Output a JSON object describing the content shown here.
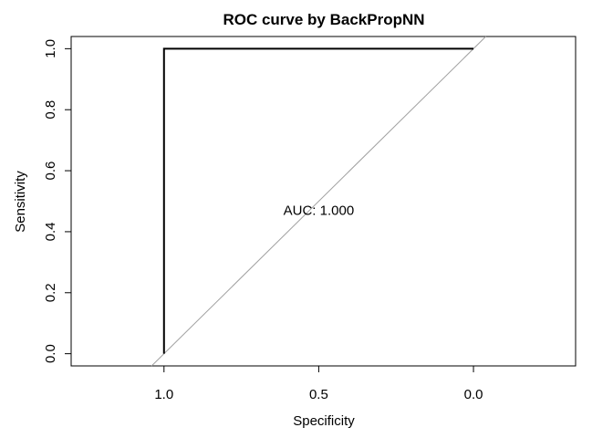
{
  "chart_data": {
    "type": "line",
    "title": "ROC curve by BackPropNN",
    "xlabel": "Specificity",
    "ylabel": "Sensitivity",
    "x_reversed": true,
    "xlim": [
      1.3,
      -0.33
    ],
    "ylim": [
      -0.04,
      1.04
    ],
    "xticks": [
      1.0,
      0.5,
      0.0
    ],
    "xtick_labels": [
      "1.0",
      "0.5",
      "0.0"
    ],
    "yticks": [
      0.0,
      0.2,
      0.4,
      0.6,
      0.8,
      1.0
    ],
    "ytick_labels": [
      "0.0",
      "0.2",
      "0.4",
      "0.6",
      "0.8",
      "1.0"
    ],
    "series": [
      {
        "specificity": [
          1.0,
          1.0,
          0.0
        ],
        "sensitivity": [
          0.0,
          1.0,
          1.0
        ],
        "color": "#000000"
      }
    ],
    "reference_line": {
      "color": "#a0a0a0"
    },
    "annotation": {
      "text": "AUC: 1.000",
      "x": 0.5,
      "y": 0.47
    },
    "grid": false,
    "legend": "none"
  }
}
